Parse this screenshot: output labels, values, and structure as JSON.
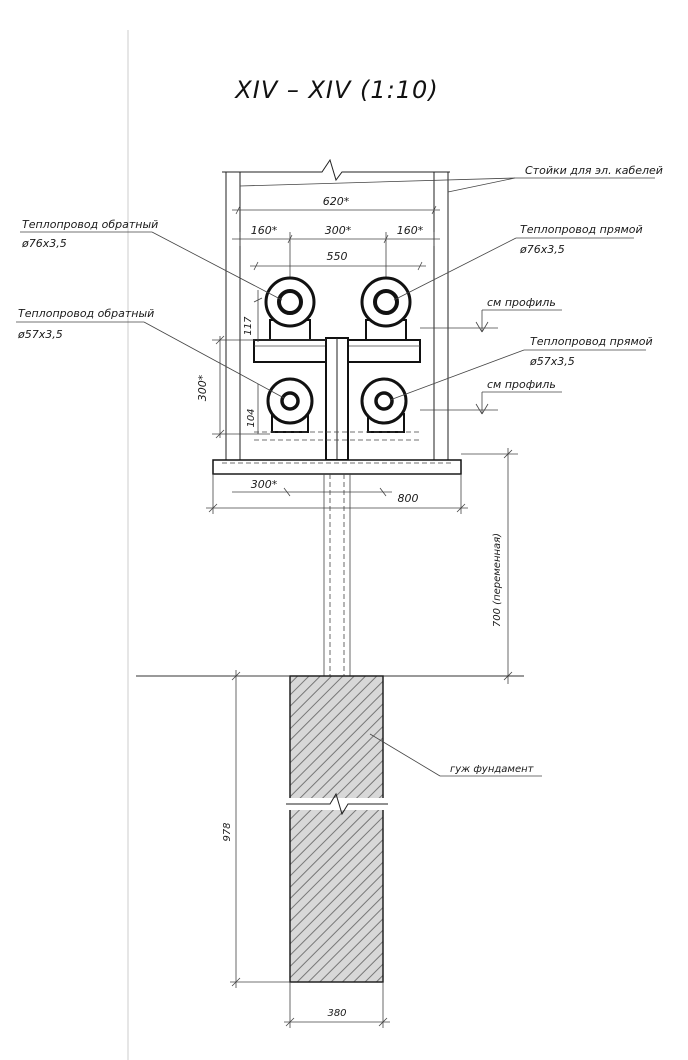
{
  "title": "XIV – XIV  (1:10)",
  "labels": {
    "cable_posts": "Стойки для эл. кабелей",
    "return_pipe_top": "Теплопровод обратный",
    "return_pipe_top_dia": "ø76х3,5",
    "supply_pipe_top": "Теплопровод прямой",
    "supply_pipe_top_dia": "ø76х3,5",
    "return_pipe_bottom": "Теплопровод обратный",
    "return_pipe_bottom_dia": "ø57х3,5",
    "supply_pipe_bottom": "Теплопровод прямой",
    "supply_pipe_bottom_dia": "ø57х3,5",
    "profile_1": "см профиль",
    "profile_2": "см профиль",
    "foundation": "гуж фундамент"
  },
  "dimensions": {
    "d620": "620*",
    "d160_left": "160*",
    "d300_top": "300*",
    "d160_right": "160*",
    "d550": "550",
    "d117": "117",
    "d300_left": "300*",
    "d104": "104",
    "d300_bottom": "300*",
    "d800": "800",
    "d700": "700 (переменная)",
    "d978": "978",
    "d380": "380"
  }
}
